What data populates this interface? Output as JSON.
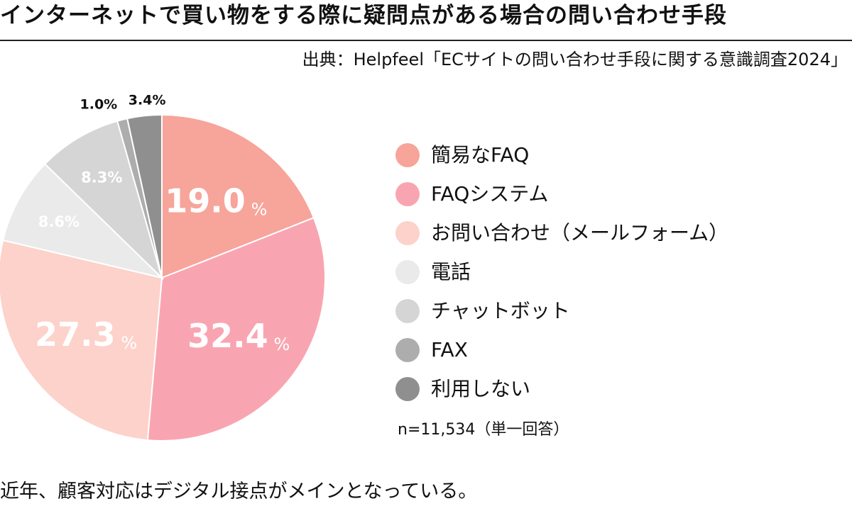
{
  "title": "インターネットで買い物をする際に疑問点がある場合の問い合わせ手段",
  "source": "出典：Helpfeel「ECサイトの問い合わせ手段に関する意識調査2024」",
  "note": "n=11,534（単一回答）",
  "caption": "近年、顧客対応はデジタル接点がメインとなっている。",
  "chart_data": {
    "type": "pie",
    "title": "インターネットで買い物をする際に疑問点がある場合の問い合わせ手段",
    "unit": "%",
    "start": "12 o'clock",
    "direction": "clockwise",
    "legend_position": "right",
    "slices": [
      {
        "label": "簡易なFAQ",
        "value": 19.0,
        "display": "19.0",
        "color": "#F7A49A",
        "label_color": "#ffffff",
        "label_style": "large"
      },
      {
        "label": "FAQシステム",
        "value": 32.4,
        "display": "32.4",
        "color": "#F9A5B1",
        "label_color": "#ffffff",
        "label_style": "large"
      },
      {
        "label": "お問い合わせ（メールフォーム）",
        "value": 27.3,
        "display": "27.3",
        "color": "#FCD2CA",
        "label_color": "#ffffff",
        "label_style": "large"
      },
      {
        "label": "電話",
        "value": 8.6,
        "display": "8.6%",
        "color": "#EAEAEA",
        "label_color": "#ffffff",
        "label_style": "small"
      },
      {
        "label": "チャットボット",
        "value": 8.3,
        "display": "8.3%",
        "color": "#D5D5D5",
        "label_color": "#ffffff",
        "label_style": "small"
      },
      {
        "label": "FAX",
        "value": 1.0,
        "display": "1.0%",
        "color": "#ADADAD",
        "label_color": "#111111",
        "label_style": "outside"
      },
      {
        "label": "利用しない",
        "value": 3.4,
        "display": "3.4%",
        "color": "#8F8F8F",
        "label_color": "#111111",
        "label_style": "outside"
      }
    ]
  }
}
